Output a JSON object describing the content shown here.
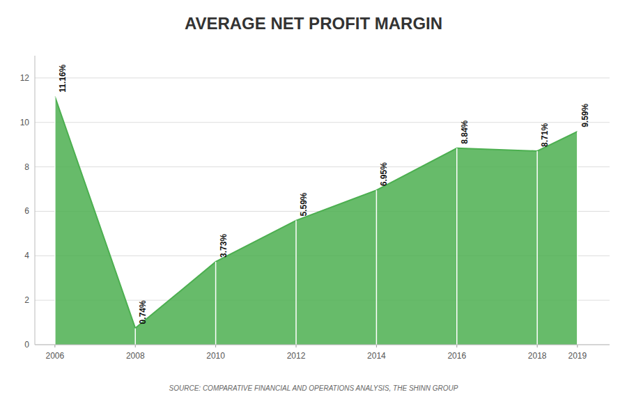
{
  "chart_data": {
    "type": "area",
    "title": "AVERAGE NET PROFIT MARGIN",
    "x": [
      2006,
      2008,
      2010,
      2012,
      2014,
      2016,
      2018,
      2019
    ],
    "values": [
      11.16,
      0.74,
      3.73,
      5.59,
      6.95,
      8.84,
      8.71,
      9.59
    ],
    "value_labels": [
      "11.16%",
      "0.74%",
      "3.73%",
      "5.59%",
      "6.95%",
      "8.84%",
      "8.71%",
      "9.59%"
    ],
    "color": "#4caf50",
    "xlim": [
      2005.5,
      2019.8
    ],
    "xticks": [
      2006,
      2008,
      2010,
      2012,
      2014,
      2016,
      2018,
      2019
    ],
    "ylim": [
      0,
      13
    ],
    "yticks": [
      0,
      2,
      4,
      6,
      8,
      10,
      12
    ],
    "grid": true,
    "data_labels": true,
    "annotations": [
      "SOURCE: COMPARATIVE FINANCIAL AND OPERATIONS ANALYSIS, THE SHINN GROUP"
    ]
  }
}
